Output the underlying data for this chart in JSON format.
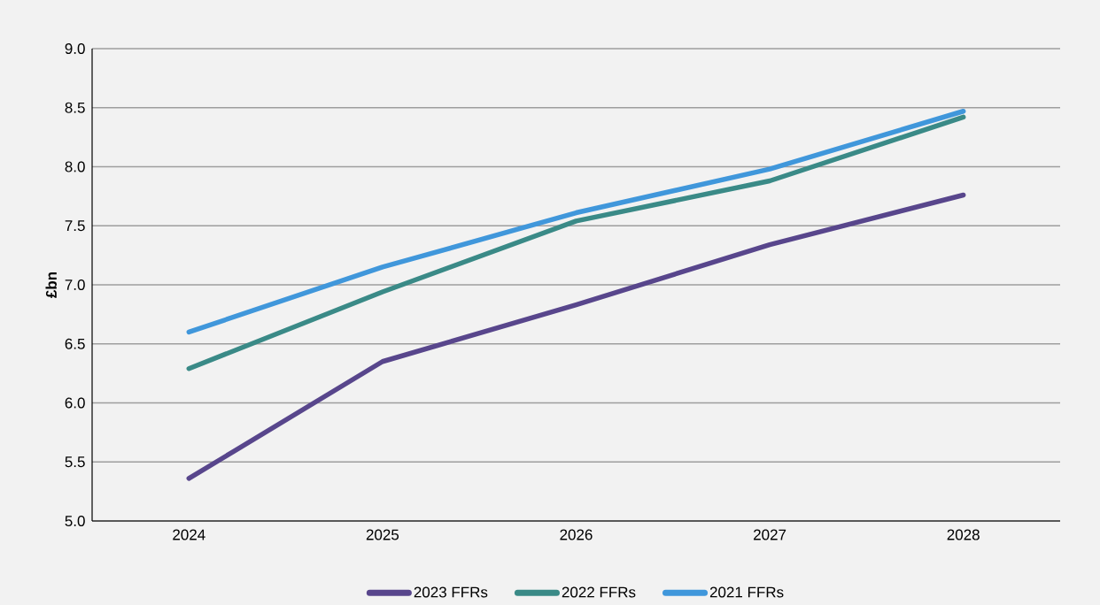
{
  "chart_data": {
    "type": "line",
    "ylabel": "£bn",
    "categories": [
      "2024",
      "2025",
      "2026",
      "2027",
      "2028"
    ],
    "series": [
      {
        "name": "2023 FFRs",
        "color": "#58468c",
        "values": [
          5.36,
          6.35,
          6.83,
          7.34,
          7.76
        ]
      },
      {
        "name": "2022 FFRs",
        "color": "#3a8a87",
        "values": [
          6.29,
          6.94,
          7.54,
          7.88,
          8.42
        ]
      },
      {
        "name": "2021 FFRs",
        "color": "#4097db",
        "values": [
          6.6,
          7.15,
          7.61,
          7.98,
          8.47
        ]
      }
    ],
    "ylim": [
      5.0,
      9.0
    ],
    "yticks": [
      {
        "value": 5.0,
        "label": "5.0"
      },
      {
        "value": 5.5,
        "label": "5.5"
      },
      {
        "value": 6.0,
        "label": "6.0"
      },
      {
        "value": 6.5,
        "label": "6.5"
      },
      {
        "value": 7.0,
        "label": "7.0"
      },
      {
        "value": 7.5,
        "label": "7.5"
      },
      {
        "value": 8.0,
        "label": "8.0"
      },
      {
        "value": 8.5,
        "label": "8.5"
      },
      {
        "value": 9.0,
        "label": "9.0"
      }
    ],
    "grid": "y",
    "legend": "bottom"
  }
}
